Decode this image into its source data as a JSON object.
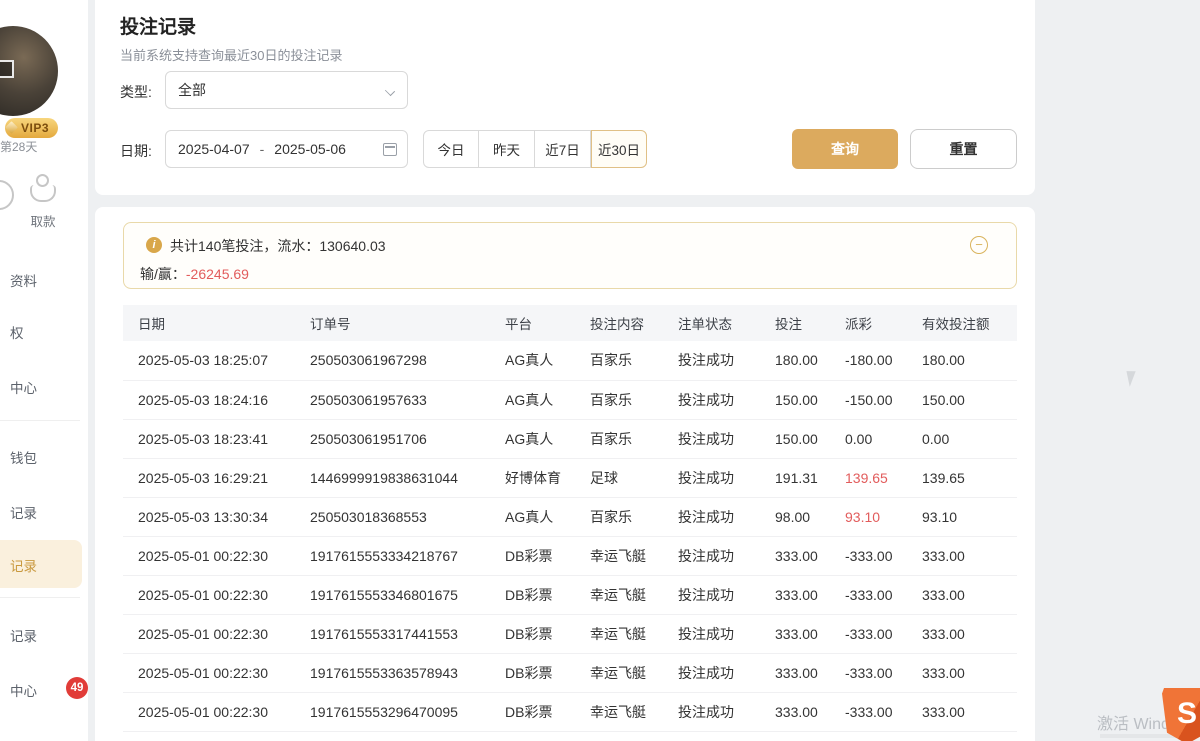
{
  "sidebar": {
    "vip_badge": "VIP3",
    "day_text": "第28天",
    "withdraw_label": "取款",
    "items": [
      {
        "label": "资料"
      },
      {
        "label": "权"
      },
      {
        "label": "中心"
      },
      {
        "label": "钱包"
      },
      {
        "label": "记录"
      },
      {
        "label": "记录",
        "active": true
      },
      {
        "label": "记录"
      },
      {
        "label": "中心",
        "badge": "49"
      }
    ],
    "badge_count": "49"
  },
  "header": {
    "title": "投注记录",
    "subtitle": "当前系统支持查询最近30日的投注记录"
  },
  "filters": {
    "type_label": "类型:",
    "type_value": "全部",
    "date_label": "日期:",
    "date_start": "2025-04-07",
    "date_separator": "-",
    "date_end": "2025-05-06",
    "quick_buttons": [
      "今日",
      "昨天",
      "近7日",
      "近30日"
    ],
    "quick_active_index": 3,
    "search_button": "查询",
    "reset_button": "重置"
  },
  "summary": {
    "line1": "共计140笔投注，流水：130640.03",
    "line2_label": "输/赢：",
    "line2_value": "-26245.69",
    "collapse_icon": "−"
  },
  "table": {
    "headers": [
      "日期",
      "订单号",
      "平台",
      "投注内容",
      "注单状态",
      "投注",
      "派彩",
      "有效投注额"
    ],
    "rows": [
      {
        "cells": [
          "2025-05-03 18:25:07",
          "250503061967298",
          "AG真人",
          "百家乐",
          "投注成功",
          "180.00",
          "-180.00",
          "180.00"
        ],
        "payout_red": false
      },
      {
        "cells": [
          "2025-05-03 18:24:16",
          "250503061957633",
          "AG真人",
          "百家乐",
          "投注成功",
          "150.00",
          "-150.00",
          "150.00"
        ],
        "payout_red": false
      },
      {
        "cells": [
          "2025-05-03 18:23:41",
          "250503061951706",
          "AG真人",
          "百家乐",
          "投注成功",
          "150.00",
          "0.00",
          "0.00"
        ],
        "payout_red": false
      },
      {
        "cells": [
          "2025-05-03 16:29:21",
          "1446999919838631044",
          "好博体育",
          "足球",
          "投注成功",
          "191.31",
          "139.65",
          "139.65"
        ],
        "payout_red": true
      },
      {
        "cells": [
          "2025-05-03 13:30:34",
          "250503018368553",
          "AG真人",
          "百家乐",
          "投注成功",
          "98.00",
          "93.10",
          "93.10"
        ],
        "payout_red": true
      },
      {
        "cells": [
          "2025-05-01 00:22:30",
          "1917615553334218767",
          "DB彩票",
          "幸运飞艇",
          "投注成功",
          "333.00",
          "-333.00",
          "333.00"
        ],
        "payout_red": false
      },
      {
        "cells": [
          "2025-05-01 00:22:30",
          "1917615553346801675",
          "DB彩票",
          "幸运飞艇",
          "投注成功",
          "333.00",
          "-333.00",
          "333.00"
        ],
        "payout_red": false
      },
      {
        "cells": [
          "2025-05-01 00:22:30",
          "1917615553317441553",
          "DB彩票",
          "幸运飞艇",
          "投注成功",
          "333.00",
          "-333.00",
          "333.00"
        ],
        "payout_red": false
      },
      {
        "cells": [
          "2025-05-01 00:22:30",
          "1917615553363578943",
          "DB彩票",
          "幸运飞艇",
          "投注成功",
          "333.00",
          "-333.00",
          "333.00"
        ],
        "payout_red": false
      },
      {
        "cells": [
          "2025-05-01 00:22:30",
          "1917615553296470095",
          "DB彩票",
          "幸运飞艇",
          "投注成功",
          "333.00",
          "-333.00",
          "333.00"
        ],
        "payout_red": false
      }
    ]
  },
  "watermark": {
    "text": "激活 Wind",
    "logo_glyph": "S"
  },
  "colors": {
    "accent_gold": "#dcaa5e",
    "summary_border": "#e9d9a9",
    "loss_red": "#e25c5c",
    "active_sidebar_bg": "#faf0dd",
    "badge_red": "#e13c38"
  }
}
